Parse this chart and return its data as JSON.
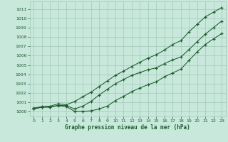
{
  "xlabel": "Graphe pression niveau de la mer (hPa)",
  "xlim_min": -0.5,
  "xlim_max": 23.5,
  "ylim_min": 999.5,
  "ylim_max": 1011.8,
  "yticks": [
    1000,
    1001,
    1002,
    1003,
    1004,
    1005,
    1006,
    1007,
    1008,
    1009,
    1010,
    1011
  ],
  "xticks": [
    0,
    1,
    2,
    3,
    4,
    5,
    6,
    7,
    8,
    9,
    10,
    11,
    12,
    13,
    14,
    15,
    16,
    17,
    18,
    19,
    20,
    21,
    22,
    23
  ],
  "bg_color": "#c8e8dc",
  "grid_color": "#a0c8b8",
  "line_color": "#1a5c2a",
  "line_upper": [
    1000.4,
    1000.55,
    1000.6,
    1000.85,
    1000.75,
    1001.1,
    1001.6,
    1002.1,
    1002.7,
    1003.3,
    1003.9,
    1004.35,
    1004.85,
    1005.3,
    1005.75,
    1006.1,
    1006.6,
    1007.2,
    1007.6,
    1008.55,
    1009.35,
    1010.15,
    1010.65,
    1011.15
  ],
  "line_mid": [
    1000.3,
    1000.5,
    1000.5,
    1000.7,
    1000.65,
    1000.3,
    1000.6,
    1001.1,
    1001.8,
    1002.4,
    1003.0,
    1003.45,
    1003.9,
    1004.2,
    1004.5,
    1004.7,
    1005.15,
    1005.55,
    1005.85,
    1006.65,
    1007.5,
    1008.3,
    1009.0,
    1009.7
  ],
  "line_low": [
    1000.3,
    1000.5,
    1000.5,
    1000.65,
    1000.55,
    1000.05,
    1000.05,
    1000.1,
    1000.3,
    1000.6,
    1001.2,
    1001.65,
    1002.15,
    1002.55,
    1002.9,
    1003.2,
    1003.75,
    1004.15,
    1004.55,
    1005.5,
    1006.4,
    1007.2,
    1007.8,
    1008.35
  ]
}
